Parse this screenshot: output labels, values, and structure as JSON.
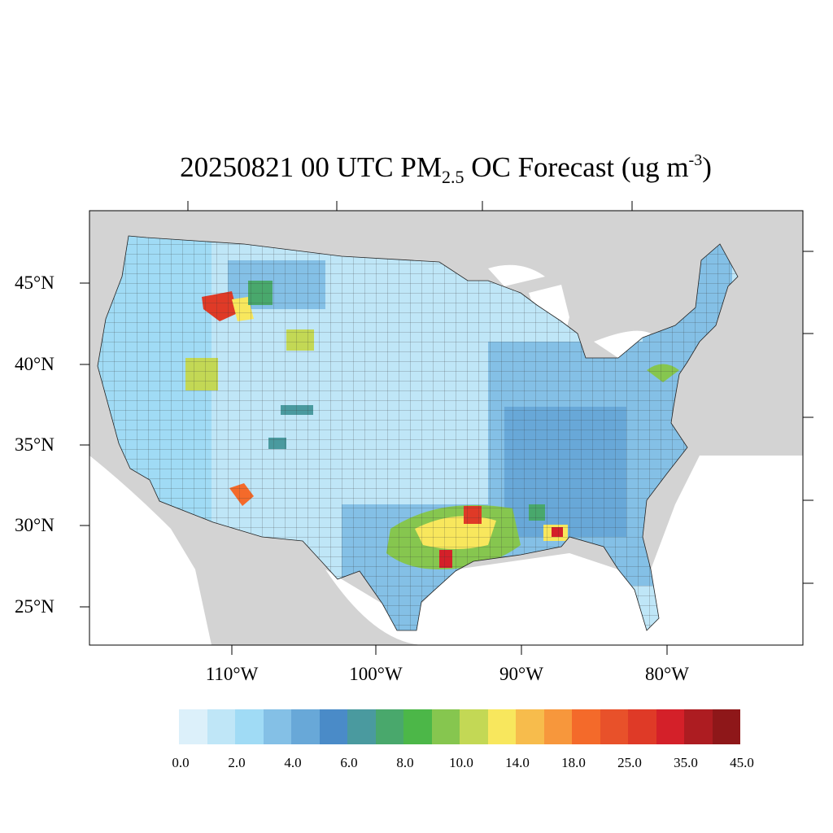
{
  "title": {
    "main": "20250821 00 UTC PM",
    "sub": "2.5",
    "mid": " OC Forecast (ug m",
    "sup": "-3",
    "end": ")"
  },
  "lat_labels": [
    "45°N",
    "40°N",
    "35°N",
    "30°N",
    "25°N"
  ],
  "lon_labels": [
    "110°W",
    "100°W",
    "90°W",
    "80°W"
  ],
  "colorbar": {
    "colors": [
      "#dcf0fa",
      "#bfe6f7",
      "#a0dbf5",
      "#84c0e6",
      "#68a8d8",
      "#4a8bc8",
      "#4a9a9f",
      "#49a86c",
      "#4cb748",
      "#86c64f",
      "#c3d855",
      "#f8e75d",
      "#f7bc4c",
      "#f7973c",
      "#f46a2a",
      "#e8512a",
      "#df3a27",
      "#d42029",
      "#ad1c21",
      "#8e1719"
    ],
    "labels": [
      "0.0",
      "2.0",
      "4.0",
      "6.0",
      "8.0",
      "10.0",
      "14.0",
      "18.0",
      "25.0",
      "35.0",
      "45.0"
    ]
  },
  "colors": {
    "land_outside": "#d3d3d3",
    "water": "#ffffff",
    "base_fill": "#bfe6f7"
  }
}
